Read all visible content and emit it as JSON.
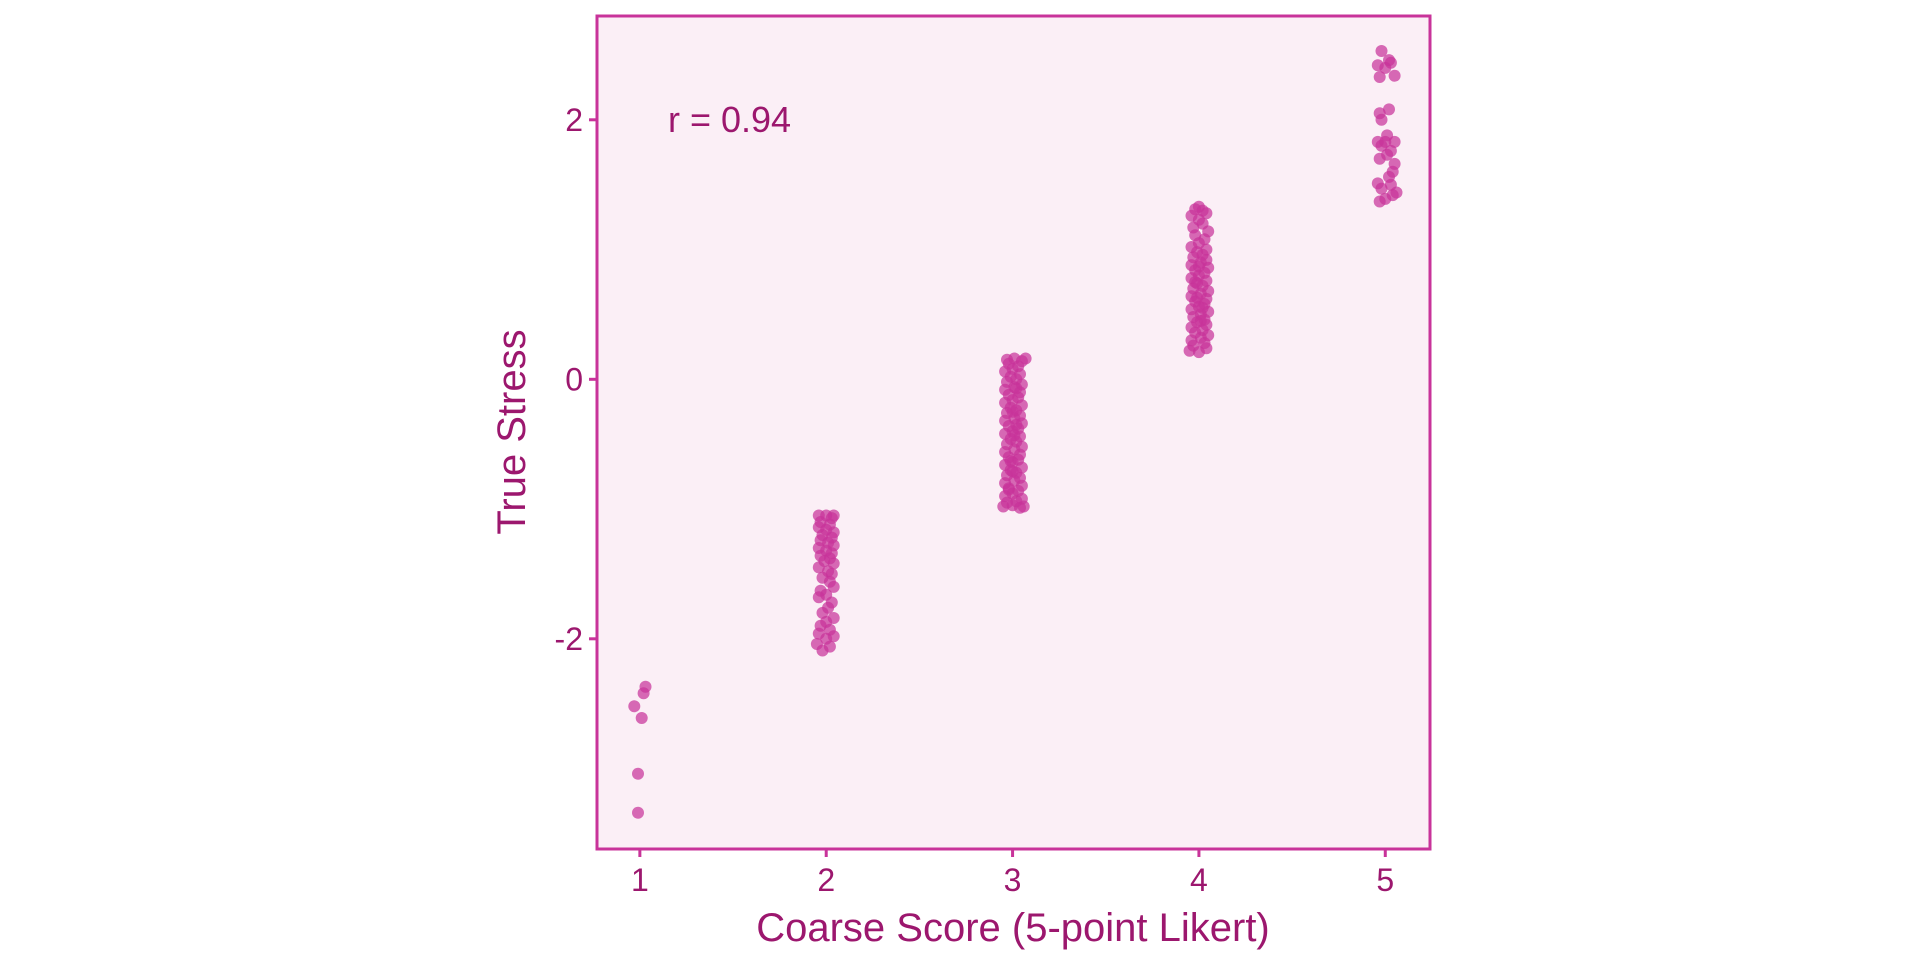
{
  "chart_data": {
    "type": "scatter",
    "title": "",
    "xlabel": "Coarse Score (5-point Likert)",
    "ylabel": "True Stress",
    "xlim": [
      0.77,
      5.24
    ],
    "ylim": [
      -3.62,
      2.8
    ],
    "x_ticks": [
      "1",
      "2",
      "3",
      "4",
      "5"
    ],
    "y_ticks": [
      "2",
      "0",
      "-2"
    ],
    "annotation": "r = 0.94",
    "grid": false,
    "legend": "none",
    "colors": {
      "point": "#c8339a",
      "panel_bg": "#fbeff6",
      "frame": "#c8339a",
      "text": "#9c176e"
    },
    "series": [
      {
        "points": [
          [
            0.99,
            -3.34
          ],
          [
            0.99,
            -3.04
          ],
          [
            1.01,
            -2.61
          ],
          [
            0.97,
            -2.52
          ],
          [
            1.02,
            -2.42
          ],
          [
            1.03,
            -2.37
          ],
          [
            1.96,
            -1.05
          ],
          [
            2.0,
            -1.05
          ],
          [
            2.04,
            -1.05
          ],
          [
            2.03,
            -1.07
          ],
          [
            1.97,
            -1.1
          ],
          [
            2.02,
            -1.12
          ],
          [
            1.96,
            -1.14
          ],
          [
            2.0,
            -1.16
          ],
          [
            2.04,
            -1.18
          ],
          [
            1.98,
            -1.2
          ],
          [
            2.03,
            -1.22
          ],
          [
            1.97,
            -1.24
          ],
          [
            2.01,
            -1.26
          ],
          [
            2.04,
            -1.28
          ],
          [
            1.96,
            -1.3
          ],
          [
            2.0,
            -1.32
          ],
          [
            2.03,
            -1.34
          ],
          [
            1.97,
            -1.36
          ],
          [
            2.02,
            -1.38
          ],
          [
            1.99,
            -1.4
          ],
          [
            2.04,
            -1.42
          ],
          [
            1.96,
            -1.45
          ],
          [
            2.01,
            -1.48
          ],
          [
            2.03,
            -1.5
          ],
          [
            1.98,
            -1.53
          ],
          [
            2.02,
            -1.56
          ],
          [
            2.04,
            -1.6
          ],
          [
            1.97,
            -1.63
          ],
          [
            2.0,
            -1.66
          ],
          [
            1.96,
            -1.68
          ],
          [
            2.03,
            -1.72
          ],
          [
            2.01,
            -1.76
          ],
          [
            1.98,
            -1.8
          ],
          [
            2.04,
            -1.84
          ],
          [
            2.0,
            -1.87
          ],
          [
            1.97,
            -1.9
          ],
          [
            2.02,
            -1.93
          ],
          [
            1.96,
            -1.96
          ],
          [
            2.04,
            -1.98
          ],
          [
            2.0,
            -2.0
          ],
          [
            1.95,
            -2.04
          ],
          [
            2.02,
            -2.06
          ],
          [
            1.98,
            -2.09
          ],
          [
            2.95,
            -0.98
          ],
          [
            3.0,
            -0.97
          ],
          [
            3.04,
            -0.99
          ],
          [
            3.06,
            -0.98
          ],
          [
            2.97,
            -0.95
          ],
          [
            3.02,
            -0.94
          ],
          [
            3.05,
            -0.92
          ],
          [
            2.96,
            -0.9
          ],
          [
            3.0,
            -0.88
          ],
          [
            3.03,
            -0.86
          ],
          [
            2.98,
            -0.84
          ],
          [
            3.05,
            -0.82
          ],
          [
            2.96,
            -0.8
          ],
          [
            3.01,
            -0.78
          ],
          [
            3.04,
            -0.76
          ],
          [
            2.97,
            -0.74
          ],
          [
            3.02,
            -0.72
          ],
          [
            2.99,
            -0.7
          ],
          [
            3.05,
            -0.68
          ],
          [
            2.96,
            -0.66
          ],
          [
            3.0,
            -0.64
          ],
          [
            3.03,
            -0.62
          ],
          [
            2.98,
            -0.6
          ],
          [
            3.04,
            -0.58
          ],
          [
            2.96,
            -0.56
          ],
          [
            3.01,
            -0.54
          ],
          [
            3.05,
            -0.52
          ],
          [
            2.97,
            -0.5
          ],
          [
            3.02,
            -0.48
          ],
          [
            2.99,
            -0.46
          ],
          [
            3.04,
            -0.44
          ],
          [
            2.96,
            -0.42
          ],
          [
            3.0,
            -0.4
          ],
          [
            3.03,
            -0.38
          ],
          [
            2.98,
            -0.36
          ],
          [
            3.05,
            -0.34
          ],
          [
            2.96,
            -0.32
          ],
          [
            3.01,
            -0.3
          ],
          [
            3.04,
            -0.28
          ],
          [
            2.97,
            -0.26
          ],
          [
            3.02,
            -0.24
          ],
          [
            2.99,
            -0.22
          ],
          [
            3.05,
            -0.2
          ],
          [
            2.96,
            -0.18
          ],
          [
            3.0,
            -0.16
          ],
          [
            3.03,
            -0.14
          ],
          [
            2.98,
            -0.12
          ],
          [
            3.04,
            -0.1
          ],
          [
            2.96,
            -0.08
          ],
          [
            3.01,
            -0.06
          ],
          [
            3.05,
            -0.04
          ],
          [
            2.97,
            -0.02
          ],
          [
            3.02,
            0.0
          ],
          [
            2.99,
            0.02
          ],
          [
            3.04,
            0.04
          ],
          [
            2.96,
            0.06
          ],
          [
            3.0,
            0.08
          ],
          [
            3.03,
            0.1
          ],
          [
            2.98,
            0.12
          ],
          [
            3.05,
            0.14
          ],
          [
            3.07,
            0.16
          ],
          [
            2.97,
            0.15
          ],
          [
            3.01,
            0.16
          ],
          [
            2.99,
            -0.63
          ],
          [
            3.01,
            -0.43
          ],
          [
            3.0,
            -0.25
          ],
          [
            3.02,
            -0.07
          ],
          [
            2.98,
            -0.85
          ],
          [
            3.0,
            -0.71
          ],
          [
            3.02,
            -0.35
          ],
          [
            3.95,
            0.22
          ],
          [
            4.0,
            0.21
          ],
          [
            4.04,
            0.24
          ],
          [
            3.97,
            0.26
          ],
          [
            4.03,
            0.28
          ],
          [
            3.96,
            0.3
          ],
          [
            4.01,
            0.32
          ],
          [
            4.05,
            0.34
          ],
          [
            3.98,
            0.36
          ],
          [
            4.02,
            0.38
          ],
          [
            3.96,
            0.4
          ],
          [
            4.04,
            0.42
          ],
          [
            3.99,
            0.44
          ],
          [
            4.03,
            0.46
          ],
          [
            3.97,
            0.48
          ],
          [
            4.01,
            0.5
          ],
          [
            4.05,
            0.52
          ],
          [
            3.96,
            0.54
          ],
          [
            4.0,
            0.56
          ],
          [
            4.03,
            0.58
          ],
          [
            3.98,
            0.6
          ],
          [
            4.04,
            0.62
          ],
          [
            3.96,
            0.64
          ],
          [
            4.01,
            0.66
          ],
          [
            4.05,
            0.68
          ],
          [
            3.97,
            0.7
          ],
          [
            4.02,
            0.72
          ],
          [
            3.99,
            0.74
          ],
          [
            4.04,
            0.76
          ],
          [
            3.96,
            0.78
          ],
          [
            4.0,
            0.8
          ],
          [
            4.03,
            0.82
          ],
          [
            3.98,
            0.84
          ],
          [
            4.05,
            0.86
          ],
          [
            3.96,
            0.88
          ],
          [
            4.01,
            0.9
          ],
          [
            4.04,
            0.92
          ],
          [
            3.97,
            0.94
          ],
          [
            4.02,
            0.96
          ],
          [
            3.99,
            0.98
          ],
          [
            4.04,
            1.0
          ],
          [
            3.96,
            1.02
          ],
          [
            4.0,
            1.05
          ],
          [
            4.03,
            1.08
          ],
          [
            3.98,
            1.11
          ],
          [
            4.05,
            1.14
          ],
          [
            3.97,
            1.17
          ],
          [
            4.02,
            1.2
          ],
          [
            4.0,
            1.23
          ],
          [
            3.96,
            1.26
          ],
          [
            4.04,
            1.28
          ],
          [
            3.98,
            1.31
          ],
          [
            4.02,
            1.3
          ],
          [
            4.0,
            1.33
          ],
          [
            4.01,
            0.45
          ],
          [
            3.99,
            0.63
          ],
          [
            4.0,
            0.87
          ],
          [
            4.02,
            0.55
          ],
          [
            3.98,
            0.75
          ],
          [
            4.97,
            1.37
          ],
          [
            5.0,
            1.39
          ],
          [
            5.04,
            1.42
          ],
          [
            5.06,
            1.44
          ],
          [
            4.98,
            1.47
          ],
          [
            5.03,
            1.5
          ],
          [
            4.96,
            1.51
          ],
          [
            5.02,
            1.56
          ],
          [
            5.04,
            1.6
          ],
          [
            5.05,
            1.66
          ],
          [
            4.97,
            1.7
          ],
          [
            5.01,
            1.73
          ],
          [
            5.03,
            1.76
          ],
          [
            4.98,
            1.8
          ],
          [
            4.96,
            1.83
          ],
          [
            5.0,
            1.83
          ],
          [
            5.05,
            1.83
          ],
          [
            5.01,
            1.88
          ],
          [
            4.97,
            2.05
          ],
          [
            5.02,
            2.08
          ],
          [
            4.98,
            2.0
          ],
          [
            4.97,
            2.33
          ],
          [
            5.05,
            2.34
          ],
          [
            5.0,
            2.4
          ],
          [
            4.96,
            2.42
          ],
          [
            5.03,
            2.44
          ],
          [
            5.02,
            2.46
          ],
          [
            4.98,
            2.53
          ]
        ]
      }
    ]
  }
}
